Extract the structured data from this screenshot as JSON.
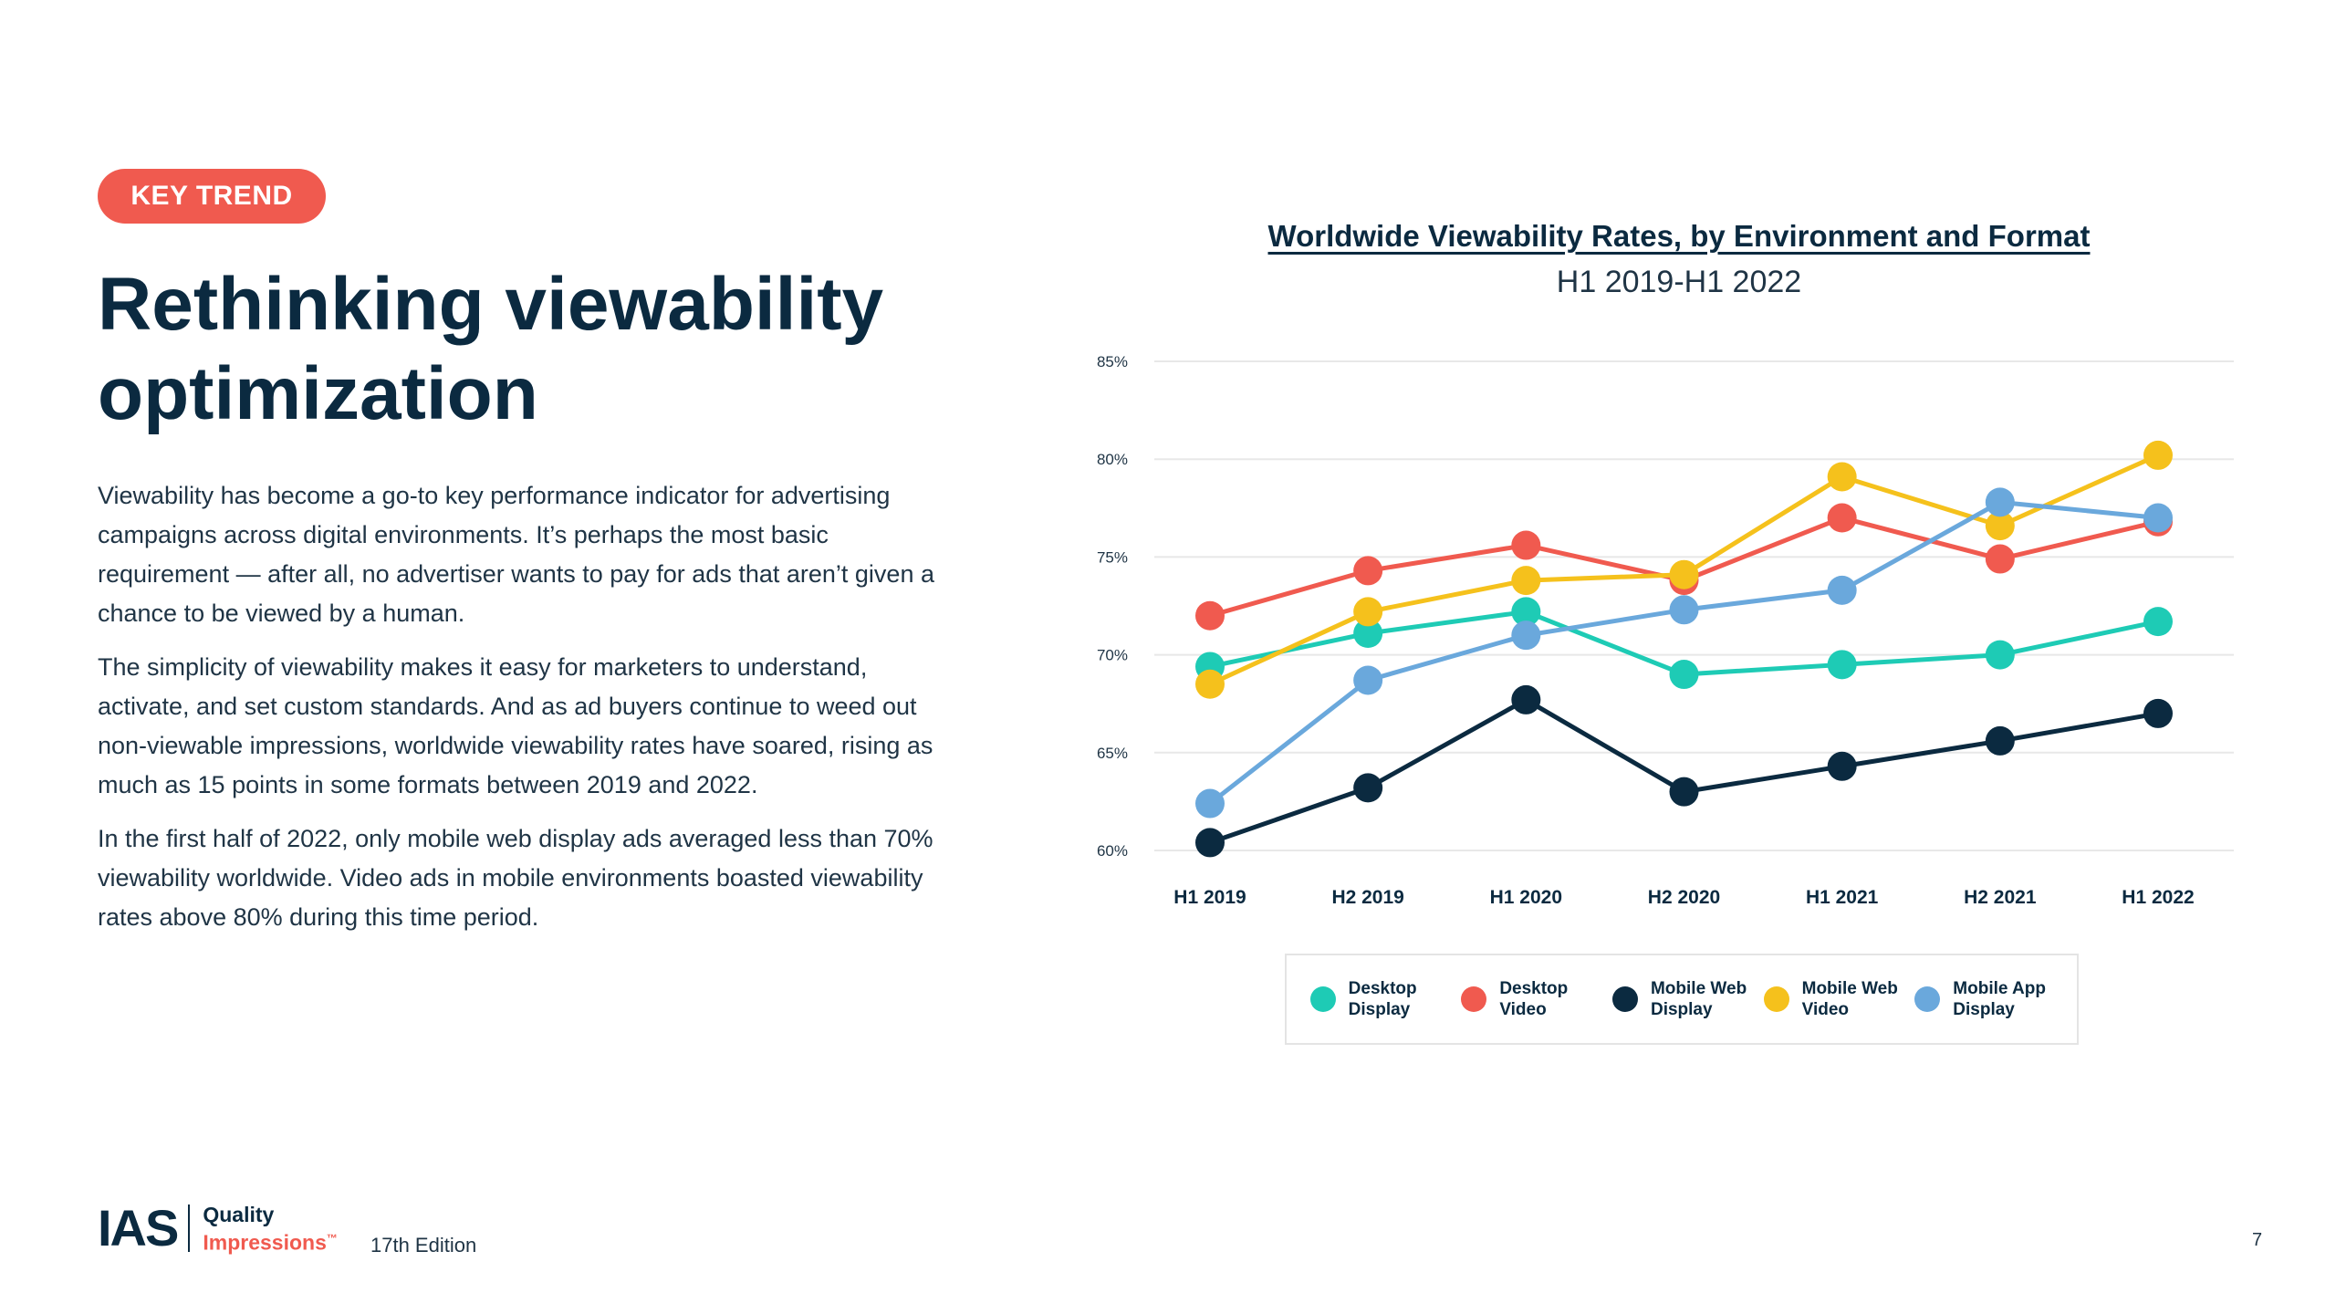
{
  "badge": "KEY TREND",
  "title": "Rethinking viewability optimization",
  "paragraphs": [
    "Viewability has become a go-to key performance indicator for advertising campaigns across digital environments. It’s perhaps the most basic requirement — after all, no advertiser wants to pay for ads that aren’t given a chance to be viewed by a human.",
    "The simplicity of viewability makes it easy for marketers to understand, activate, and set custom standards. And as ad buyers continue to weed out non-viewable impressions, worldwide viewability rates have soared, rising as much as 15 points in some formats between 2019 and 2022.",
    "In the first half of 2022, only mobile web display ads averaged less than 70% viewability worldwide. Video ads in mobile environments boasted viewability rates above 80% during this time period."
  ],
  "chart_data": {
    "type": "line",
    "title": "Worldwide Viewability Rates, by Environment and Format",
    "subtitle": "H1 2019-H1 2022",
    "xlabel": "",
    "ylabel": "",
    "categories": [
      "H1 2019",
      "H2 2019",
      "H1 2020",
      "H2 2020",
      "H1 2021",
      "H2 2021",
      "H1 2022"
    ],
    "yticks": [
      "60%",
      "65%",
      "70%",
      "75%",
      "80%",
      "85%"
    ],
    "ylim": [
      60,
      85
    ],
    "grid": true,
    "legend_position": "bottom",
    "series": [
      {
        "name": "Desktop Display",
        "color": "#1ecbb5",
        "values": [
          69.4,
          71.1,
          72.2,
          69.0,
          69.5,
          70.0,
          71.7
        ]
      },
      {
        "name": "Desktop Video",
        "color": "#f05a4f",
        "values": [
          72.0,
          74.3,
          75.6,
          73.8,
          77.0,
          74.9,
          76.8
        ]
      },
      {
        "name": "Mobile Web Display",
        "color": "#0b2a40",
        "values": [
          60.4,
          63.2,
          67.7,
          63.0,
          64.3,
          65.6,
          67.0
        ]
      },
      {
        "name": "Mobile Web Video",
        "color": "#f5c11c",
        "values": [
          68.5,
          72.2,
          73.8,
          74.1,
          79.1,
          76.6,
          80.2
        ]
      },
      {
        "name": "Mobile App Display",
        "color": "#6aa8dc",
        "values": [
          62.4,
          68.7,
          71.0,
          72.3,
          73.3,
          77.8,
          77.0
        ]
      }
    ]
  },
  "footer": {
    "logo_mark": "IAS",
    "logo_line1": "Quality",
    "logo_line2": "Impressions",
    "logo_tm": "™",
    "edition": "17th Edition",
    "page_number": "7"
  }
}
